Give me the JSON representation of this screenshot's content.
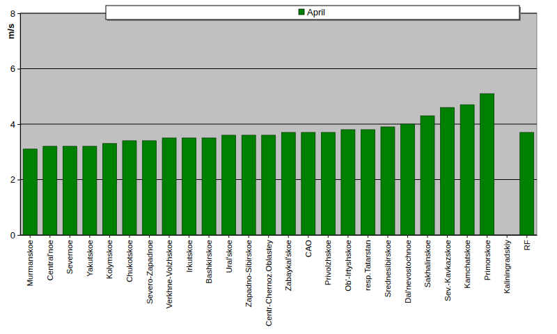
{
  "chart_data": {
    "type": "bar",
    "y_label": "m/s",
    "categories": [
      "Murmanskoe",
      "Central'noe",
      "Severnoe",
      "Yakutskoe",
      "Kolymskoe",
      "Chukotskoe",
      "Severo-Zapadnoe",
      "Verkhne-Volzhskoe",
      "Irkutskoe",
      "Bashkirskoe",
      "Ural'skoe",
      "Zapadno-Sibirskoe",
      "Centr-Chernoz.Oblastey",
      "Zabaykal'skoe",
      "CAO",
      "Privolzhskoe",
      "Ob'-Irtyshskoe",
      "resp.Tatarstan",
      "Srednesibirskoe",
      "Dal'nevostochnoe",
      "Sakhalinskoe",
      "Sev.-Kavkazskoe",
      "Kamchatskoe",
      "Primorskoe",
      "Kaliningradskiy",
      "RF"
    ],
    "series": [
      {
        "name": "April",
        "color": "#008000",
        "values": [
          3.1,
          3.2,
          3.2,
          3.2,
          3.3,
          3.4,
          3.4,
          3.5,
          3.5,
          3.5,
          3.6,
          3.6,
          3.6,
          3.7,
          3.7,
          3.7,
          3.8,
          3.8,
          3.9,
          4.0,
          4.3,
          4.6,
          4.7,
          5.1,
          null,
          3.7
        ]
      }
    ],
    "ylim": [
      0,
      8
    ],
    "yticks": [
      0,
      2,
      4,
      6,
      8
    ],
    "grid": true,
    "legend": "top"
  }
}
